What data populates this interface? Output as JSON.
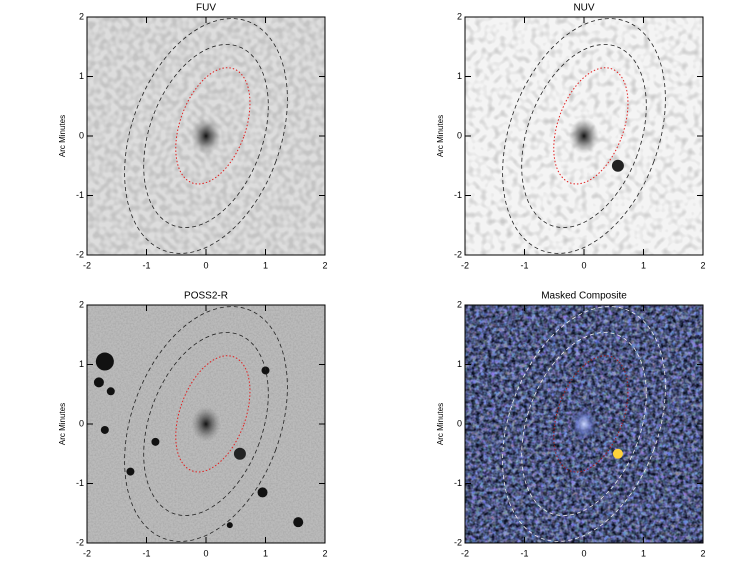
{
  "panels": [
    {
      "title": "FUV",
      "ylabel": "Arc Minutes",
      "xlim": [
        -2,
        2
      ],
      "ylim": [
        -2,
        2
      ],
      "xticks": [
        -2,
        -1,
        0,
        1,
        2
      ],
      "yticks": [
        -2,
        -1,
        0,
        1,
        2
      ]
    },
    {
      "title": "NUV",
      "ylabel": "Arc Minutes",
      "xlim": [
        -2,
        2
      ],
      "ylim": [
        -2,
        2
      ],
      "xticks": [
        -2,
        -1,
        0,
        1,
        2
      ],
      "yticks": [
        -2,
        -1,
        0,
        1,
        2
      ]
    },
    {
      "title": "POSS2-R",
      "ylabel": "Arc Minutes",
      "xlim": [
        -2,
        2
      ],
      "ylim": [
        -2,
        2
      ],
      "xticks": [
        -2,
        -1,
        0,
        1,
        2
      ],
      "yticks": [
        -2,
        -1,
        0,
        1,
        2
      ]
    },
    {
      "title": "Masked Composite",
      "ylabel": "Arc Minutes",
      "xlim": [
        -2,
        2
      ],
      "ylim": [
        -2,
        2
      ],
      "xticks": [
        -2,
        -1,
        0,
        1,
        2
      ],
      "yticks": [
        -2,
        -1,
        0,
        1,
        2
      ]
    }
  ]
}
